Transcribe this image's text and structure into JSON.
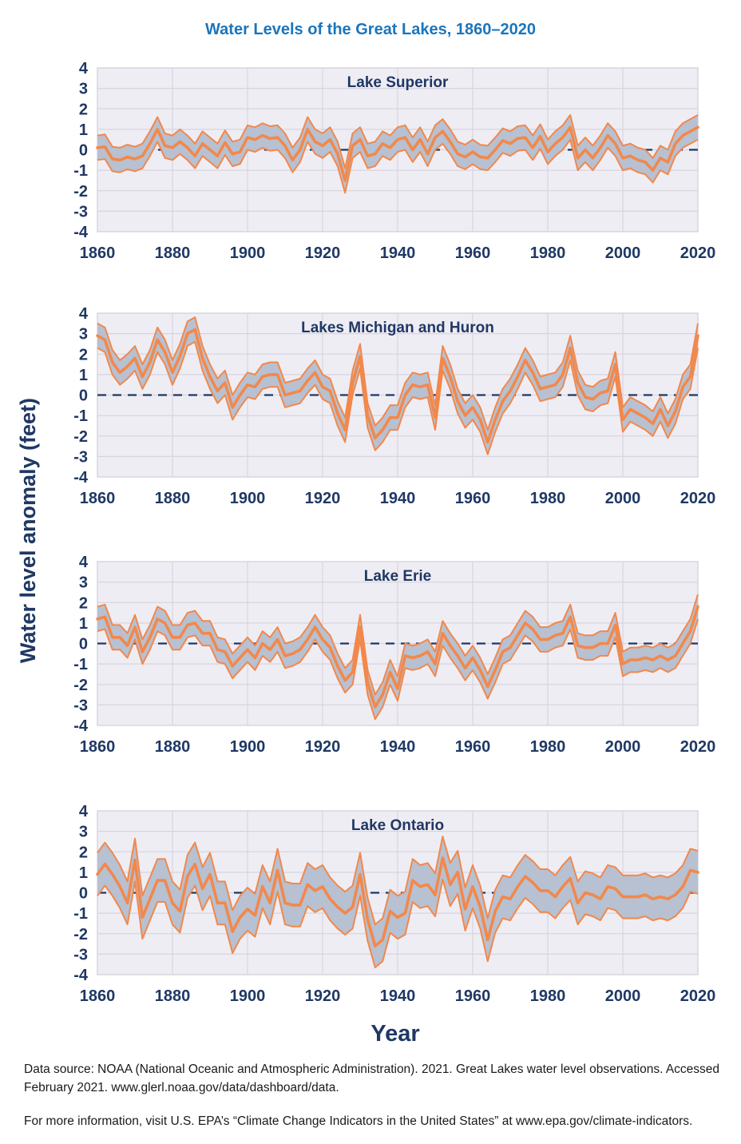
{
  "title": "Water Levels of the Great Lakes, 1860–2020",
  "y_axis_label": "Water level anomaly (feet)",
  "x_axis_label": "Year",
  "footer": {
    "source": "Data source: NOAA (National Oceanic and Atmospheric Administration). 2021. Great Lakes water level observations. Accessed February 2021. www.glerl.noaa.gov/data/dashboard/data.",
    "more_info": "For more information, visit U.S. EPA’s “Climate Change Indicators in the United States” at www.epa.gov/climate-indicators."
  },
  "colors": {
    "title_blue": "#1B75BB",
    "navy_text": "#1F3864",
    "orange_line": "#F2884B",
    "band_fill": "#B7C1D1",
    "plot_background": "#EFEDF4",
    "gridline": "#D8D4DF",
    "plot_border": "#C7C3D0",
    "zero_line": "#1F3864"
  },
  "chart_data": {
    "type": "line",
    "note": "Each panel: orange center line = water level anomaly; shaded band = center ± band_halfwidth (feet); dashed navy line at 0.",
    "xlim": [
      1860,
      2020
    ],
    "ylim": [
      -4,
      4
    ],
    "x_ticks": [
      1860,
      1880,
      1900,
      1920,
      1940,
      1960,
      1980,
      2000,
      2020
    ],
    "y_ticks": [
      4,
      3,
      2,
      1,
      0,
      -1,
      -2,
      -3,
      -4
    ],
    "grid": true,
    "years": [
      1860,
      1862,
      1864,
      1866,
      1868,
      1870,
      1872,
      1874,
      1876,
      1878,
      1880,
      1882,
      1884,
      1886,
      1888,
      1890,
      1892,
      1894,
      1896,
      1898,
      1900,
      1902,
      1904,
      1906,
      1908,
      1910,
      1912,
      1914,
      1916,
      1918,
      1920,
      1922,
      1924,
      1926,
      1928,
      1930,
      1932,
      1934,
      1936,
      1938,
      1940,
      1942,
      1944,
      1946,
      1948,
      1950,
      1952,
      1954,
      1956,
      1958,
      1960,
      1962,
      1964,
      1966,
      1968,
      1970,
      1972,
      1974,
      1976,
      1978,
      1980,
      1982,
      1984,
      1986,
      1988,
      1990,
      1992,
      1994,
      1996,
      1998,
      2000,
      2002,
      2004,
      2006,
      2008,
      2010,
      2012,
      2014,
      2016,
      2018,
      2020
    ],
    "series": [
      {
        "name": "Lake Superior",
        "band_halfwidth": 0.6,
        "center": [
          0.1,
          0.15,
          -0.45,
          -0.5,
          -0.35,
          -0.45,
          -0.3,
          0.3,
          1.0,
          0.2,
          0.1,
          0.4,
          0.1,
          -0.3,
          0.3,
          0.0,
          -0.3,
          0.35,
          -0.2,
          -0.1,
          0.6,
          0.5,
          0.7,
          0.55,
          0.6,
          0.2,
          -0.5,
          0.0,
          1.0,
          0.4,
          0.2,
          0.5,
          -0.2,
          -1.5,
          0.2,
          0.5,
          -0.3,
          -0.2,
          0.3,
          0.1,
          0.5,
          0.6,
          0.0,
          0.5,
          -0.2,
          0.6,
          0.9,
          0.4,
          -0.2,
          -0.35,
          -0.1,
          -0.35,
          -0.4,
          0.0,
          0.45,
          0.3,
          0.55,
          0.6,
          0.1,
          0.65,
          -0.1,
          0.3,
          0.6,
          1.1,
          -0.4,
          0.0,
          -0.4,
          0.1,
          0.7,
          0.3,
          -0.4,
          -0.3,
          -0.5,
          -0.6,
          -1.0,
          -0.4,
          -0.6,
          0.3,
          0.7,
          0.9,
          1.1
        ]
      },
      {
        "name": "Lakes Michigan and Huron",
        "band_halfwidth": 0.6,
        "center": [
          2.9,
          2.7,
          1.6,
          1.1,
          1.4,
          1.8,
          0.9,
          1.6,
          2.7,
          2.1,
          1.1,
          1.9,
          3.0,
          3.2,
          1.8,
          0.9,
          0.2,
          0.6,
          -0.6,
          0.0,
          0.5,
          0.4,
          0.9,
          1.0,
          1.0,
          0.0,
          0.1,
          0.2,
          0.7,
          1.1,
          0.4,
          0.2,
          -0.9,
          -1.7,
          0.6,
          1.9,
          -1.0,
          -2.1,
          -1.7,
          -1.1,
          -1.1,
          0.0,
          0.5,
          0.4,
          0.5,
          -1.1,
          1.8,
          0.9,
          -0.3,
          -1.0,
          -0.6,
          -1.2,
          -2.3,
          -1.2,
          -0.3,
          0.2,
          0.9,
          1.7,
          1.1,
          0.3,
          0.4,
          0.5,
          1.0,
          2.3,
          0.6,
          -0.1,
          -0.2,
          0.1,
          0.2,
          1.5,
          -1.2,
          -0.7,
          -0.9,
          -1.1,
          -1.4,
          -0.7,
          -1.5,
          -0.8,
          0.4,
          0.9,
          2.9
        ]
      },
      {
        "name": "Lake Erie",
        "band_halfwidth": 0.6,
        "center": [
          1.2,
          1.3,
          0.3,
          0.3,
          -0.1,
          0.8,
          -0.4,
          0.3,
          1.2,
          1.0,
          0.3,
          0.3,
          0.9,
          1.0,
          0.5,
          0.5,
          -0.3,
          -0.4,
          -1.1,
          -0.7,
          -0.3,
          -0.7,
          0.0,
          -0.3,
          0.2,
          -0.6,
          -0.5,
          -0.3,
          0.2,
          0.8,
          0.2,
          -0.2,
          -1.1,
          -1.8,
          -1.4,
          0.8,
          -1.9,
          -3.1,
          -2.5,
          -1.4,
          -2.2,
          -0.6,
          -0.7,
          -0.6,
          -0.4,
          -1.0,
          0.5,
          -0.1,
          -0.6,
          -1.2,
          -0.7,
          -1.3,
          -2.1,
          -1.3,
          -0.4,
          -0.2,
          0.4,
          1.0,
          0.7,
          0.2,
          0.2,
          0.4,
          0.5,
          1.3,
          -0.1,
          -0.2,
          -0.2,
          0.0,
          0.0,
          0.9,
          -1.0,
          -0.8,
          -0.8,
          -0.7,
          -0.8,
          -0.6,
          -0.8,
          -0.6,
          0.0,
          0.6,
          1.8
        ]
      },
      {
        "name": "Lake Ontario",
        "band_halfwidth": 1.05,
        "center": [
          0.9,
          1.4,
          0.9,
          0.3,
          -0.5,
          1.6,
          -1.2,
          -0.3,
          0.6,
          0.6,
          -0.5,
          -0.9,
          0.8,
          1.4,
          0.2,
          0.9,
          -0.5,
          -0.5,
          -1.9,
          -1.2,
          -0.8,
          -1.1,
          0.3,
          -0.5,
          1.1,
          -0.5,
          -0.6,
          -0.6,
          0.4,
          0.1,
          0.3,
          -0.3,
          -0.7,
          -1.0,
          -0.7,
          0.9,
          -1.3,
          -2.6,
          -2.3,
          -0.9,
          -1.2,
          -1.0,
          0.6,
          0.3,
          0.4,
          -0.1,
          1.7,
          0.4,
          1.0,
          -0.8,
          0.3,
          -0.7,
          -2.3,
          -0.9,
          -0.2,
          -0.3,
          0.3,
          0.8,
          0.5,
          0.1,
          0.1,
          -0.2,
          0.3,
          0.7,
          -0.5,
          0.0,
          -0.1,
          -0.3,
          0.3,
          0.2,
          -0.2,
          -0.2,
          -0.2,
          -0.1,
          -0.3,
          -0.2,
          -0.3,
          -0.1,
          0.3,
          1.1,
          1.0
        ]
      }
    ]
  }
}
